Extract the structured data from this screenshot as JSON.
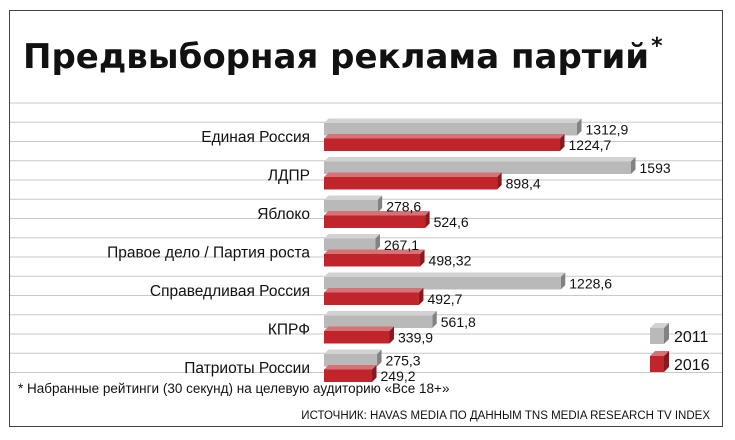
{
  "chart_data": {
    "type": "bar",
    "orientation": "horizontal",
    "title": "Предвыборная реклама партий",
    "title_mark": "*",
    "categories": [
      "Единая Россия",
      "ЛДПР",
      "Яблоко",
      "Правое дело / Партия роста",
      "Справедливая Россия",
      "КПРФ",
      "Патриоты России"
    ],
    "series": [
      {
        "name": "2011",
        "color": "#b9b9b9",
        "values": [
          1312.9,
          1593,
          278.6,
          267.1,
          1228.6,
          561.8,
          275.3
        ],
        "labels": [
          "1312,9",
          "1593",
          "278,6",
          "267,1",
          "1228,6",
          "561,8",
          "275,3"
        ]
      },
      {
        "name": "2016",
        "color": "#c0252b",
        "values": [
          1224.7,
          898.4,
          524.6,
          498.32,
          492.7,
          339.9,
          249.2
        ],
        "labels": [
          "1224,7",
          "898,4",
          "524,6",
          "498,32",
          "492,7",
          "339,9",
          "249,2"
        ]
      }
    ],
    "xlim": [
      0,
      1700
    ],
    "grid": "horizontal lines",
    "legend_position": "bottom-right"
  },
  "footnote": "* Набранные рейтинги (30 секунд) на целевую аудиторию «Все 18+»",
  "source": "ИСТОЧНИК: HAVAS MEDIA ПО ДАННЫМ TNS MEDIA RESEARCH TV INDEX"
}
